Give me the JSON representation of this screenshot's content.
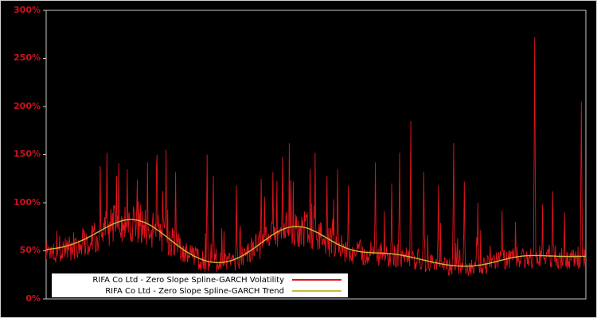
{
  "window": {
    "background": "#000000",
    "frame_color": "#d0d0d0"
  },
  "chart_data": {
    "type": "line",
    "title": "",
    "xlabel": "",
    "ylabel": "",
    "ylim": [
      0,
      300
    ],
    "ytick_values": [
      0,
      50,
      100,
      150,
      200,
      250,
      300
    ],
    "ytick_labels": [
      "0%",
      "50%",
      "100%",
      "150%",
      "200%",
      "250%",
      "300%"
    ],
    "axis_label_color": "#cf1020",
    "plot_border_color": "#c8c8c8",
    "grid": false,
    "legend_position": "bottom-left-inside",
    "legend": {
      "background": "#ffffff",
      "text_color": "#000000"
    },
    "series": [
      {
        "name": "RIFA Co Ltd - Zero Slope Spline-GARCH Volatility",
        "color": "#e0141c",
        "style": "noisy-volatility"
      },
      {
        "name": "RIFA Co Ltd - Zero Slope Spline-GARCH Trend",
        "color": "#c9b938",
        "style": "smooth-spline"
      }
    ],
    "trend_points": [
      [
        0,
        50
      ],
      [
        0.03,
        52
      ],
      [
        0.06,
        57
      ],
      [
        0.09,
        66
      ],
      [
        0.12,
        78
      ],
      [
        0.145,
        88
      ],
      [
        0.16,
        90
      ],
      [
        0.18,
        86
      ],
      [
        0.21,
        72
      ],
      [
        0.24,
        55
      ],
      [
        0.27,
        42
      ],
      [
        0.3,
        36
      ],
      [
        0.32,
        34
      ],
      [
        0.35,
        36
      ],
      [
        0.38,
        48
      ],
      [
        0.41,
        65
      ],
      [
        0.44,
        78
      ],
      [
        0.465,
        82
      ],
      [
        0.49,
        78
      ],
      [
        0.52,
        62
      ],
      [
        0.55,
        50
      ],
      [
        0.575,
        46
      ],
      [
        0.6,
        47
      ],
      [
        0.62,
        50
      ],
      [
        0.65,
        48
      ],
      [
        0.68,
        43
      ],
      [
        0.72,
        37
      ],
      [
        0.76,
        33
      ],
      [
        0.79,
        32
      ],
      [
        0.82,
        35
      ],
      [
        0.85,
        42
      ],
      [
        0.875,
        47
      ],
      [
        0.9,
        47
      ],
      [
        0.93,
        44
      ],
      [
        0.96,
        43
      ],
      [
        1,
        45
      ]
    ],
    "spikes": [
      [
        0.1,
        138
      ],
      [
        0.113,
        152
      ],
      [
        0.13,
        128
      ],
      [
        0.15,
        135
      ],
      [
        0.188,
        142
      ],
      [
        0.205,
        150
      ],
      [
        0.222,
        155
      ],
      [
        0.24,
        132
      ],
      [
        0.298,
        150
      ],
      [
        0.31,
        128
      ],
      [
        0.352,
        118
      ],
      [
        0.398,
        125
      ],
      [
        0.42,
        132
      ],
      [
        0.438,
        148
      ],
      [
        0.458,
        122
      ],
      [
        0.498,
        152
      ],
      [
        0.52,
        128
      ],
      [
        0.54,
        135
      ],
      [
        0.56,
        118
      ],
      [
        0.61,
        142
      ],
      [
        0.64,
        120
      ],
      [
        0.655,
        152
      ],
      [
        0.676,
        185
      ],
      [
        0.7,
        132
      ],
      [
        0.727,
        118
      ],
      [
        0.755,
        162
      ],
      [
        0.775,
        122
      ],
      [
        0.8,
        100
      ],
      [
        0.845,
        92
      ],
      [
        0.87,
        80
      ],
      [
        0.905,
        272
      ],
      [
        0.92,
        98
      ],
      [
        0.938,
        112
      ],
      [
        0.96,
        90
      ],
      [
        0.992,
        205
      ]
    ],
    "noise": {
      "seed": 1337,
      "samples": 960,
      "base": 0.7,
      "amp": 0.55,
      "spike_prob": 0.05,
      "spike_base": 1.2,
      "spike_amp": 1.0,
      "min": 24,
      "cap": 162
    }
  }
}
